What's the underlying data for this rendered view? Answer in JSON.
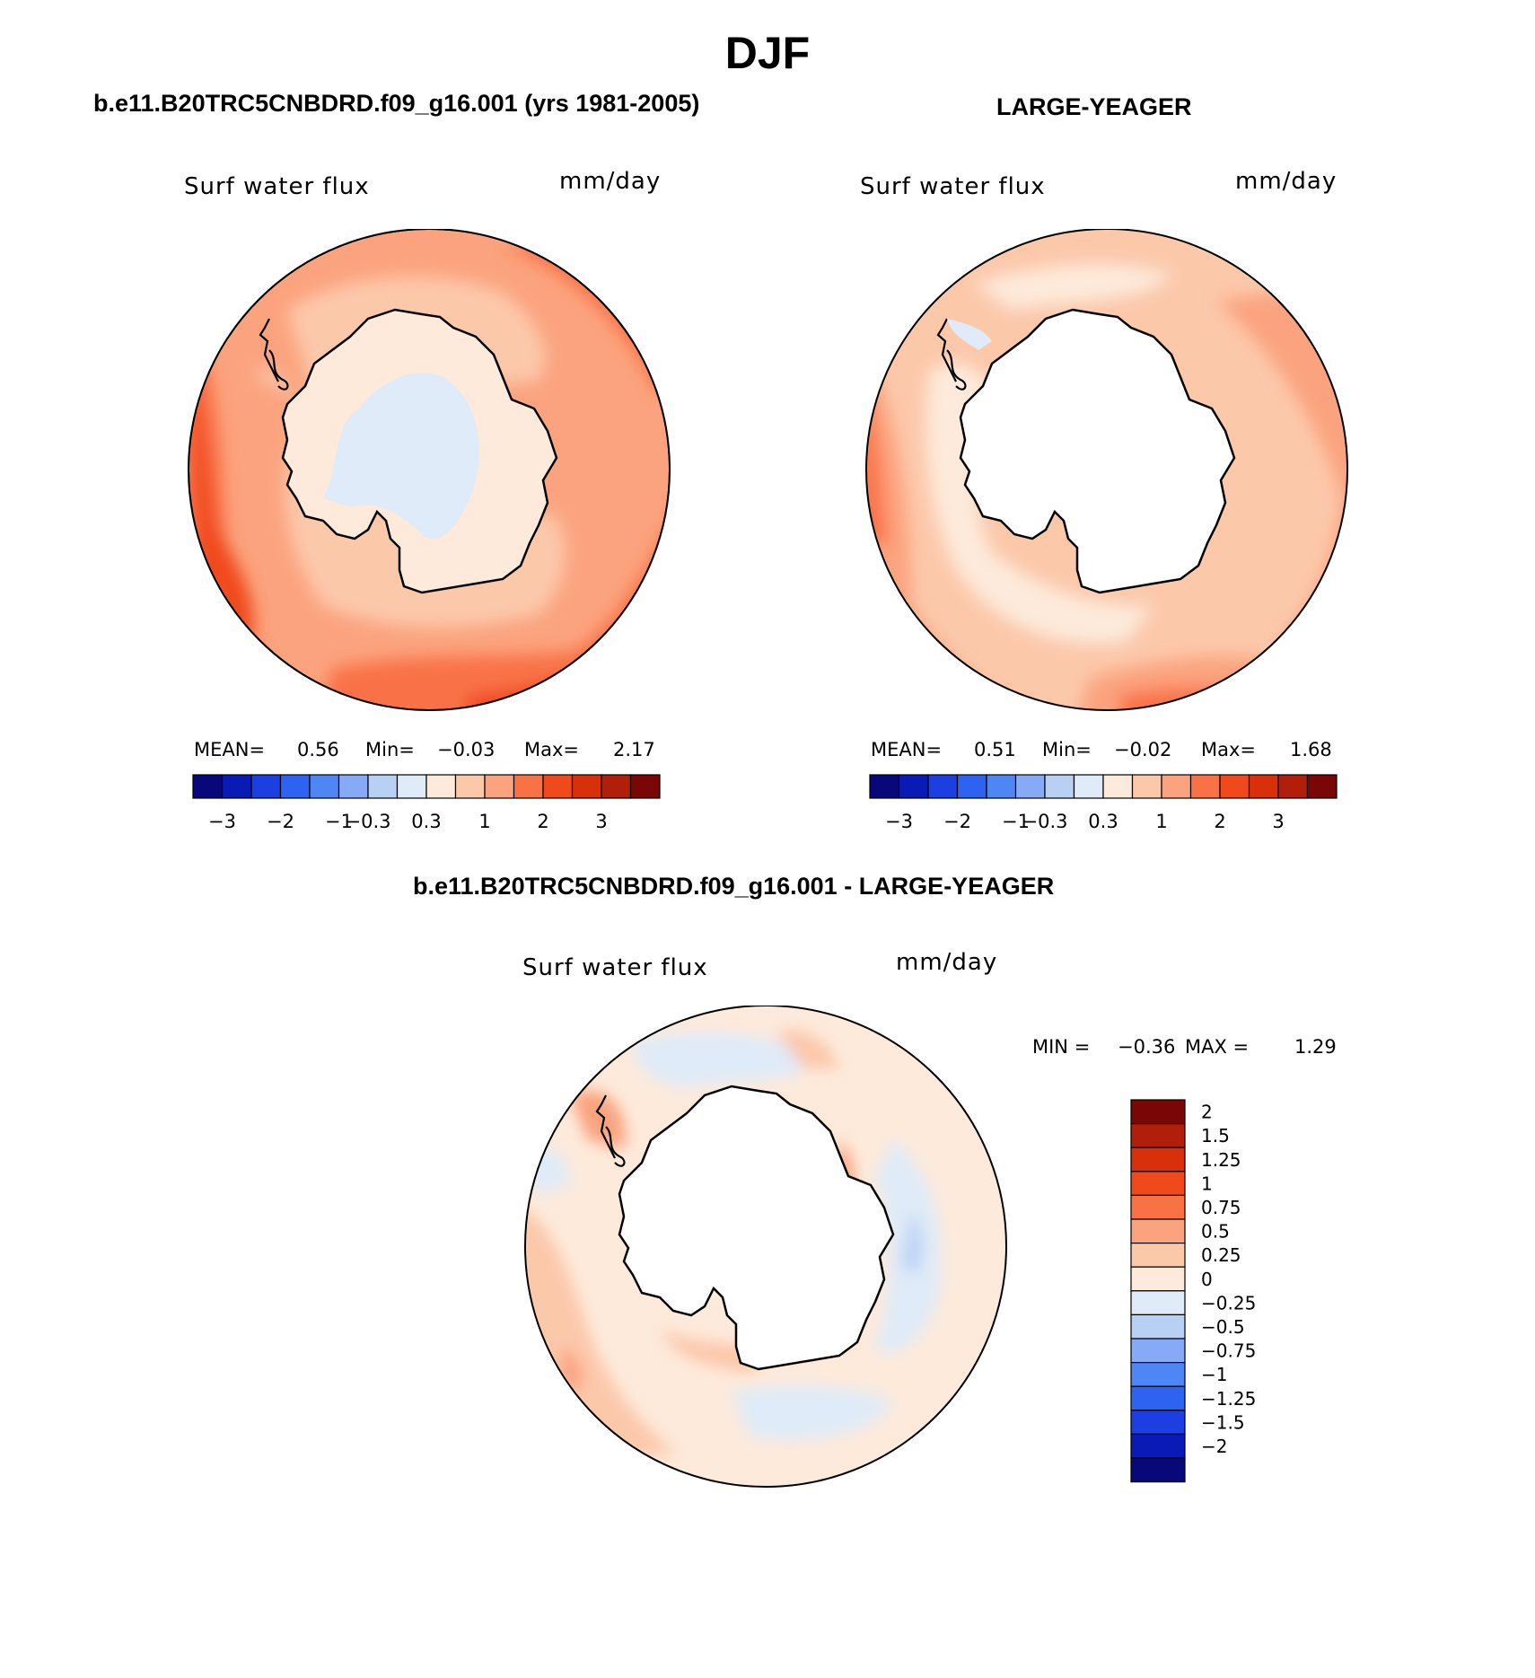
{
  "figure": {
    "title": "DJF",
    "diff_title": "b.e11.B20TRC5CNBDRD.f09_g16.001 - LARGE-YEAGER"
  },
  "panels": [
    {
      "title": "b.e11.B20TRC5CNBDRD.f09_g16.001 (yrs 1981-2005)",
      "variable": "Surf water flux",
      "units": "mm/day",
      "stats": {
        "mean_label": "MEAN=",
        "mean": "0.56",
        "min_label": "Min=",
        "min": "−0.03",
        "max_label": "Max=",
        "max": "2.17"
      }
    },
    {
      "title": "LARGE-YEAGER",
      "variable": "Surf water flux",
      "units": "mm/day",
      "stats": {
        "mean_label": "MEAN=",
        "mean": "0.51",
        "min_label": "Min=",
        "min": "−0.02",
        "max_label": "Max=",
        "max": "1.68"
      }
    },
    {
      "title": "b.e11.B20TRC5CNBDRD.f09_g16.001 - LARGE-YEAGER",
      "variable": "Surf water flux",
      "units": "mm/day",
      "stats": {
        "min_label": "MIN =",
        "min": "−0.36",
        "max_label": "MAX =",
        "max": "1.29"
      }
    }
  ],
  "colorbars": {
    "horizontal": {
      "colors": [
        "#08087a",
        "#0a1ab4",
        "#1b3fe0",
        "#2d63f0",
        "#4f86f5",
        "#86aaf5",
        "#b9d0f5",
        "#dfebf8",
        "#fdeadb",
        "#fcc8aa",
        "#fba37e",
        "#f97246",
        "#f04a1c",
        "#d9300c",
        "#b11e0a",
        "#7a0606"
      ],
      "tick_labels": [
        "−3",
        "−2",
        "−1",
        "−0.3",
        "0.3",
        "1",
        "2",
        "3"
      ],
      "tick_after_box": [
        1,
        3,
        5,
        6,
        8,
        10,
        12,
        14
      ]
    },
    "vertical": {
      "colors_top_to_bottom": [
        "#7a0606",
        "#b11e0a",
        "#d9300c",
        "#f04a1c",
        "#f97246",
        "#fba37e",
        "#fcc8aa",
        "#fdeadb",
        "#dfebf8",
        "#b9d0f5",
        "#86aaf5",
        "#4f86f5",
        "#2d63f0",
        "#1b3fe0",
        "#0a1ab4",
        "#08087a"
      ],
      "tick_labels": [
        "2",
        "1.5",
        "1.25",
        "1",
        "0.75",
        "0.5",
        "0.25",
        "0",
        "−0.25",
        "−0.5",
        "−0.75",
        "−1",
        "−1.25",
        "−1.5",
        "−2"
      ]
    }
  },
  "chart_data": [
    {
      "type": "heatmap",
      "projection": "south-polar-stereographic",
      "title": "b.e11.B20TRC5CNBDRD.f09_g16.001 (yrs 1981-2005)",
      "variable": "Surf water flux",
      "units": "mm/day",
      "mean": 0.56,
      "min": -0.03,
      "max": 2.17,
      "contour_levels": [
        -3,
        -2,
        -1,
        -0.3,
        0.3,
        1,
        2,
        3
      ]
    },
    {
      "type": "heatmap",
      "projection": "south-polar-stereographic",
      "title": "LARGE-YEAGER",
      "variable": "Surf water flux",
      "units": "mm/day",
      "mean": 0.51,
      "min": -0.02,
      "max": 1.68,
      "contour_levels": [
        -3,
        -2,
        -1,
        -0.3,
        0.3,
        1,
        2,
        3
      ]
    },
    {
      "type": "heatmap",
      "projection": "south-polar-stereographic",
      "title": "b.e11.B20TRC5CNBDRD.f09_g16.001 - LARGE-YEAGER",
      "variable": "Surf water flux",
      "units": "mm/day",
      "min": -0.36,
      "max": 1.29,
      "contour_levels": [
        -2,
        -1.5,
        -1.25,
        -1,
        -0.75,
        -0.5,
        -0.25,
        0,
        0.25,
        0.5,
        0.75,
        1,
        1.25,
        1.5,
        2
      ]
    }
  ]
}
